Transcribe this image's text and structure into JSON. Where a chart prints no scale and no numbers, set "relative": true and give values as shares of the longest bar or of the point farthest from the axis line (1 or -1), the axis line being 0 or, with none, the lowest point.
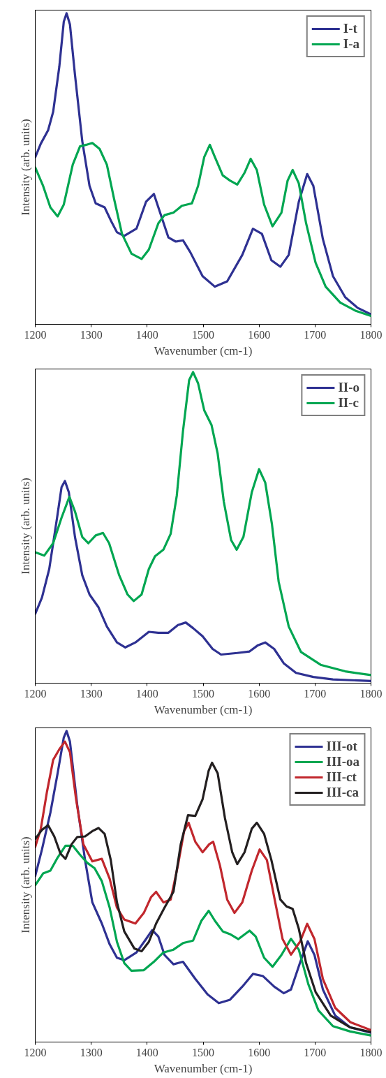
{
  "chart_data": [
    {
      "type": "line",
      "relative": true,
      "xlim": [
        1200,
        1800
      ],
      "xticks": [
        1200,
        1300,
        1400,
        1500,
        1600,
        1700,
        1800
      ],
      "xlabel": "Wavenumber (cm-1)",
      "ylabel": "Intensity (arb. units)",
      "legend": "top right",
      "series": [
        {
          "name": "I-t",
          "color": "#2e3192",
          "x": [
            1200,
            1210,
            1223,
            1232,
            1243,
            1251,
            1256,
            1262,
            1271,
            1284,
            1297,
            1308,
            1324,
            1335,
            1346,
            1359,
            1381,
            1398,
            1412,
            1420,
            1438,
            1451,
            1464,
            1477,
            1499,
            1521,
            1543,
            1570,
            1589,
            1605,
            1622,
            1638,
            1653,
            1671,
            1686,
            1697,
            1714,
            1732,
            1754,
            1776,
            1800
          ],
          "values": [
            0.537,
            0.581,
            0.624,
            0.683,
            0.828,
            0.973,
            1.0,
            0.964,
            0.802,
            0.589,
            0.445,
            0.389,
            0.376,
            0.334,
            0.296,
            0.284,
            0.308,
            0.394,
            0.419,
            0.376,
            0.279,
            0.266,
            0.27,
            0.232,
            0.155,
            0.121,
            0.138,
            0.223,
            0.307,
            0.291,
            0.206,
            0.185,
            0.223,
            0.394,
            0.483,
            0.445,
            0.274,
            0.155,
            0.087,
            0.053,
            0.032
          ]
        },
        {
          "name": "I-a",
          "color": "#00a651",
          "x": [
            1200,
            1214,
            1227,
            1240,
            1251,
            1267,
            1280,
            1291,
            1302,
            1315,
            1328,
            1341,
            1355,
            1372,
            1390,
            1403,
            1420,
            1431,
            1447,
            1462,
            1480,
            1491,
            1502,
            1512,
            1521,
            1535,
            1548,
            1561,
            1574,
            1585,
            1596,
            1609,
            1624,
            1640,
            1651,
            1660,
            1671,
            1684,
            1701,
            1719,
            1745,
            1772,
            1800
          ],
          "values": [
            0.504,
            0.445,
            0.376,
            0.347,
            0.385,
            0.513,
            0.572,
            0.577,
            0.583,
            0.564,
            0.513,
            0.402,
            0.291,
            0.227,
            0.21,
            0.24,
            0.325,
            0.351,
            0.359,
            0.381,
            0.389,
            0.445,
            0.538,
            0.577,
            0.538,
            0.479,
            0.462,
            0.449,
            0.487,
            0.532,
            0.496,
            0.385,
            0.315,
            0.359,
            0.462,
            0.496,
            0.453,
            0.325,
            0.198,
            0.121,
            0.07,
            0.044,
            0.027
          ]
        }
      ]
    },
    {
      "type": "line",
      "relative": true,
      "xlim": [
        1200,
        1800
      ],
      "xticks": [
        1200,
        1300,
        1400,
        1500,
        1600,
        1700,
        1800
      ],
      "xlabel": "Wavenumber (cm-1)",
      "ylabel": "Intensity (arb. units)",
      "legend": "top right",
      "series": [
        {
          "name": "II-o",
          "color": "#2e3192",
          "x": [
            1200,
            1212,
            1225,
            1239,
            1247,
            1253,
            1260,
            1271,
            1284,
            1297,
            1313,
            1328,
            1346,
            1361,
            1379,
            1403,
            1420,
            1438,
            1455,
            1469,
            1482,
            1499,
            1517,
            1532,
            1561,
            1583,
            1598,
            1611,
            1627,
            1644,
            1666,
            1697,
            1732,
            1800
          ],
          "values": [
            0.223,
            0.275,
            0.367,
            0.532,
            0.63,
            0.65,
            0.614,
            0.47,
            0.347,
            0.285,
            0.244,
            0.182,
            0.131,
            0.115,
            0.131,
            0.165,
            0.162,
            0.162,
            0.187,
            0.195,
            0.177,
            0.151,
            0.11,
            0.092,
            0.097,
            0.102,
            0.122,
            0.131,
            0.11,
            0.064,
            0.033,
            0.02,
            0.012,
            0.007
          ]
        },
        {
          "name": "II-c",
          "color": "#00a651",
          "x": [
            1200,
            1216,
            1232,
            1247,
            1261,
            1271,
            1284,
            1295,
            1308,
            1321,
            1332,
            1350,
            1365,
            1376,
            1390,
            1403,
            1414,
            1429,
            1442,
            1453,
            1464,
            1475,
            1482,
            1491,
            1502,
            1515,
            1526,
            1537,
            1550,
            1560,
            1572,
            1587,
            1600,
            1611,
            1623,
            1635,
            1653,
            1675,
            1710,
            1754,
            1800
          ],
          "values": [
            0.421,
            0.41,
            0.45,
            0.532,
            0.599,
            0.552,
            0.47,
            0.45,
            0.475,
            0.483,
            0.45,
            0.347,
            0.285,
            0.264,
            0.285,
            0.367,
            0.408,
            0.429,
            0.48,
            0.604,
            0.81,
            0.974,
            1.0,
            0.964,
            0.877,
            0.83,
            0.738,
            0.583,
            0.46,
            0.429,
            0.47,
            0.614,
            0.688,
            0.645,
            0.511,
            0.326,
            0.182,
            0.1,
            0.059,
            0.038,
            0.026
          ]
        }
      ]
    },
    {
      "type": "line",
      "relative": true,
      "xlim": [
        1200,
        1800
      ],
      "xticks": [
        1200,
        1300,
        1400,
        1500,
        1600,
        1700,
        1800
      ],
      "xlabel": "Wavenumber (cm-1)",
      "ylabel": "Intensity (arb. units)",
      "legend": "top right",
      "series": [
        {
          "name": "III-ot",
          "color": "#2e3192",
          "x": [
            1200,
            1212,
            1227,
            1240,
            1251,
            1256,
            1262,
            1275,
            1289,
            1302,
            1319,
            1333,
            1346,
            1359,
            1381,
            1398,
            1409,
            1420,
            1431,
            1447,
            1464,
            1486,
            1508,
            1528,
            1548,
            1570,
            1589,
            1607,
            1627,
            1644,
            1657,
            1673,
            1687,
            1699,
            1714,
            1736,
            1763,
            1800
          ],
          "values": [
            0.534,
            0.619,
            0.737,
            0.864,
            0.979,
            1.0,
            0.966,
            0.763,
            0.585,
            0.449,
            0.381,
            0.314,
            0.271,
            0.263,
            0.288,
            0.331,
            0.36,
            0.339,
            0.28,
            0.25,
            0.258,
            0.203,
            0.153,
            0.125,
            0.136,
            0.178,
            0.219,
            0.212,
            0.178,
            0.157,
            0.169,
            0.254,
            0.324,
            0.28,
            0.169,
            0.085,
            0.047,
            0.03
          ]
        },
        {
          "name": "III-oa",
          "color": "#00a651",
          "x": [
            1200,
            1214,
            1227,
            1240,
            1254,
            1267,
            1280,
            1293,
            1306,
            1319,
            1333,
            1346,
            1359,
            1372,
            1394,
            1412,
            1429,
            1447,
            1464,
            1482,
            1497,
            1510,
            1521,
            1535,
            1548,
            1563,
            1583,
            1594,
            1609,
            1624,
            1640,
            1657,
            1671,
            1688,
            1706,
            1732,
            1763,
            1800
          ],
          "values": [
            0.504,
            0.542,
            0.551,
            0.593,
            0.631,
            0.631,
            0.602,
            0.576,
            0.559,
            0.517,
            0.432,
            0.322,
            0.254,
            0.229,
            0.231,
            0.258,
            0.288,
            0.297,
            0.318,
            0.326,
            0.39,
            0.422,
            0.39,
            0.356,
            0.347,
            0.331,
            0.358,
            0.339,
            0.271,
            0.242,
            0.28,
            0.332,
            0.297,
            0.186,
            0.102,
            0.051,
            0.034,
            0.021
          ]
        },
        {
          "name": "III-ct",
          "color": "#c1272d",
          "x": [
            1200,
            1210,
            1221,
            1232,
            1243,
            1253,
            1262,
            1273,
            1286,
            1302,
            1319,
            1333,
            1346,
            1359,
            1379,
            1394,
            1407,
            1416,
            1429,
            1442,
            1455,
            1466,
            1474,
            1486,
            1499,
            1511,
            1518,
            1530,
            1543,
            1556,
            1570,
            1587,
            1601,
            1614,
            1627,
            1642,
            1657,
            1673,
            1686,
            1699,
            1714,
            1736,
            1763,
            1800
          ],
          "values": [
            0.627,
            0.686,
            0.805,
            0.907,
            0.941,
            0.966,
            0.932,
            0.78,
            0.636,
            0.581,
            0.589,
            0.525,
            0.432,
            0.394,
            0.381,
            0.415,
            0.466,
            0.483,
            0.449,
            0.458,
            0.568,
            0.678,
            0.705,
            0.644,
            0.61,
            0.636,
            0.644,
            0.568,
            0.458,
            0.415,
            0.449,
            0.551,
            0.619,
            0.585,
            0.466,
            0.331,
            0.281,
            0.322,
            0.38,
            0.331,
            0.203,
            0.11,
            0.064,
            0.038
          ]
        },
        {
          "name": "III-ca",
          "color": "#231f20",
          "x": [
            1200,
            1212,
            1223,
            1234,
            1245,
            1254,
            1265,
            1275,
            1289,
            1302,
            1313,
            1324,
            1335,
            1346,
            1359,
            1377,
            1390,
            1403,
            1416,
            1431,
            1447,
            1460,
            1473,
            1486,
            1499,
            1510,
            1516,
            1526,
            1539,
            1552,
            1561,
            1574,
            1587,
            1596,
            1609,
            1622,
            1638,
            1649,
            1660,
            1671,
            1684,
            1701,
            1728,
            1763,
            1800
          ],
          "values": [
            0.653,
            0.682,
            0.697,
            0.661,
            0.606,
            0.589,
            0.636,
            0.659,
            0.661,
            0.678,
            0.688,
            0.669,
            0.585,
            0.449,
            0.356,
            0.301,
            0.292,
            0.322,
            0.381,
            0.432,
            0.483,
            0.636,
            0.729,
            0.727,
            0.78,
            0.873,
            0.898,
            0.864,
            0.72,
            0.61,
            0.572,
            0.61,
            0.686,
            0.705,
            0.669,
            0.585,
            0.458,
            0.436,
            0.428,
            0.364,
            0.254,
            0.161,
            0.085,
            0.047,
            0.032
          ]
        }
      ]
    }
  ]
}
